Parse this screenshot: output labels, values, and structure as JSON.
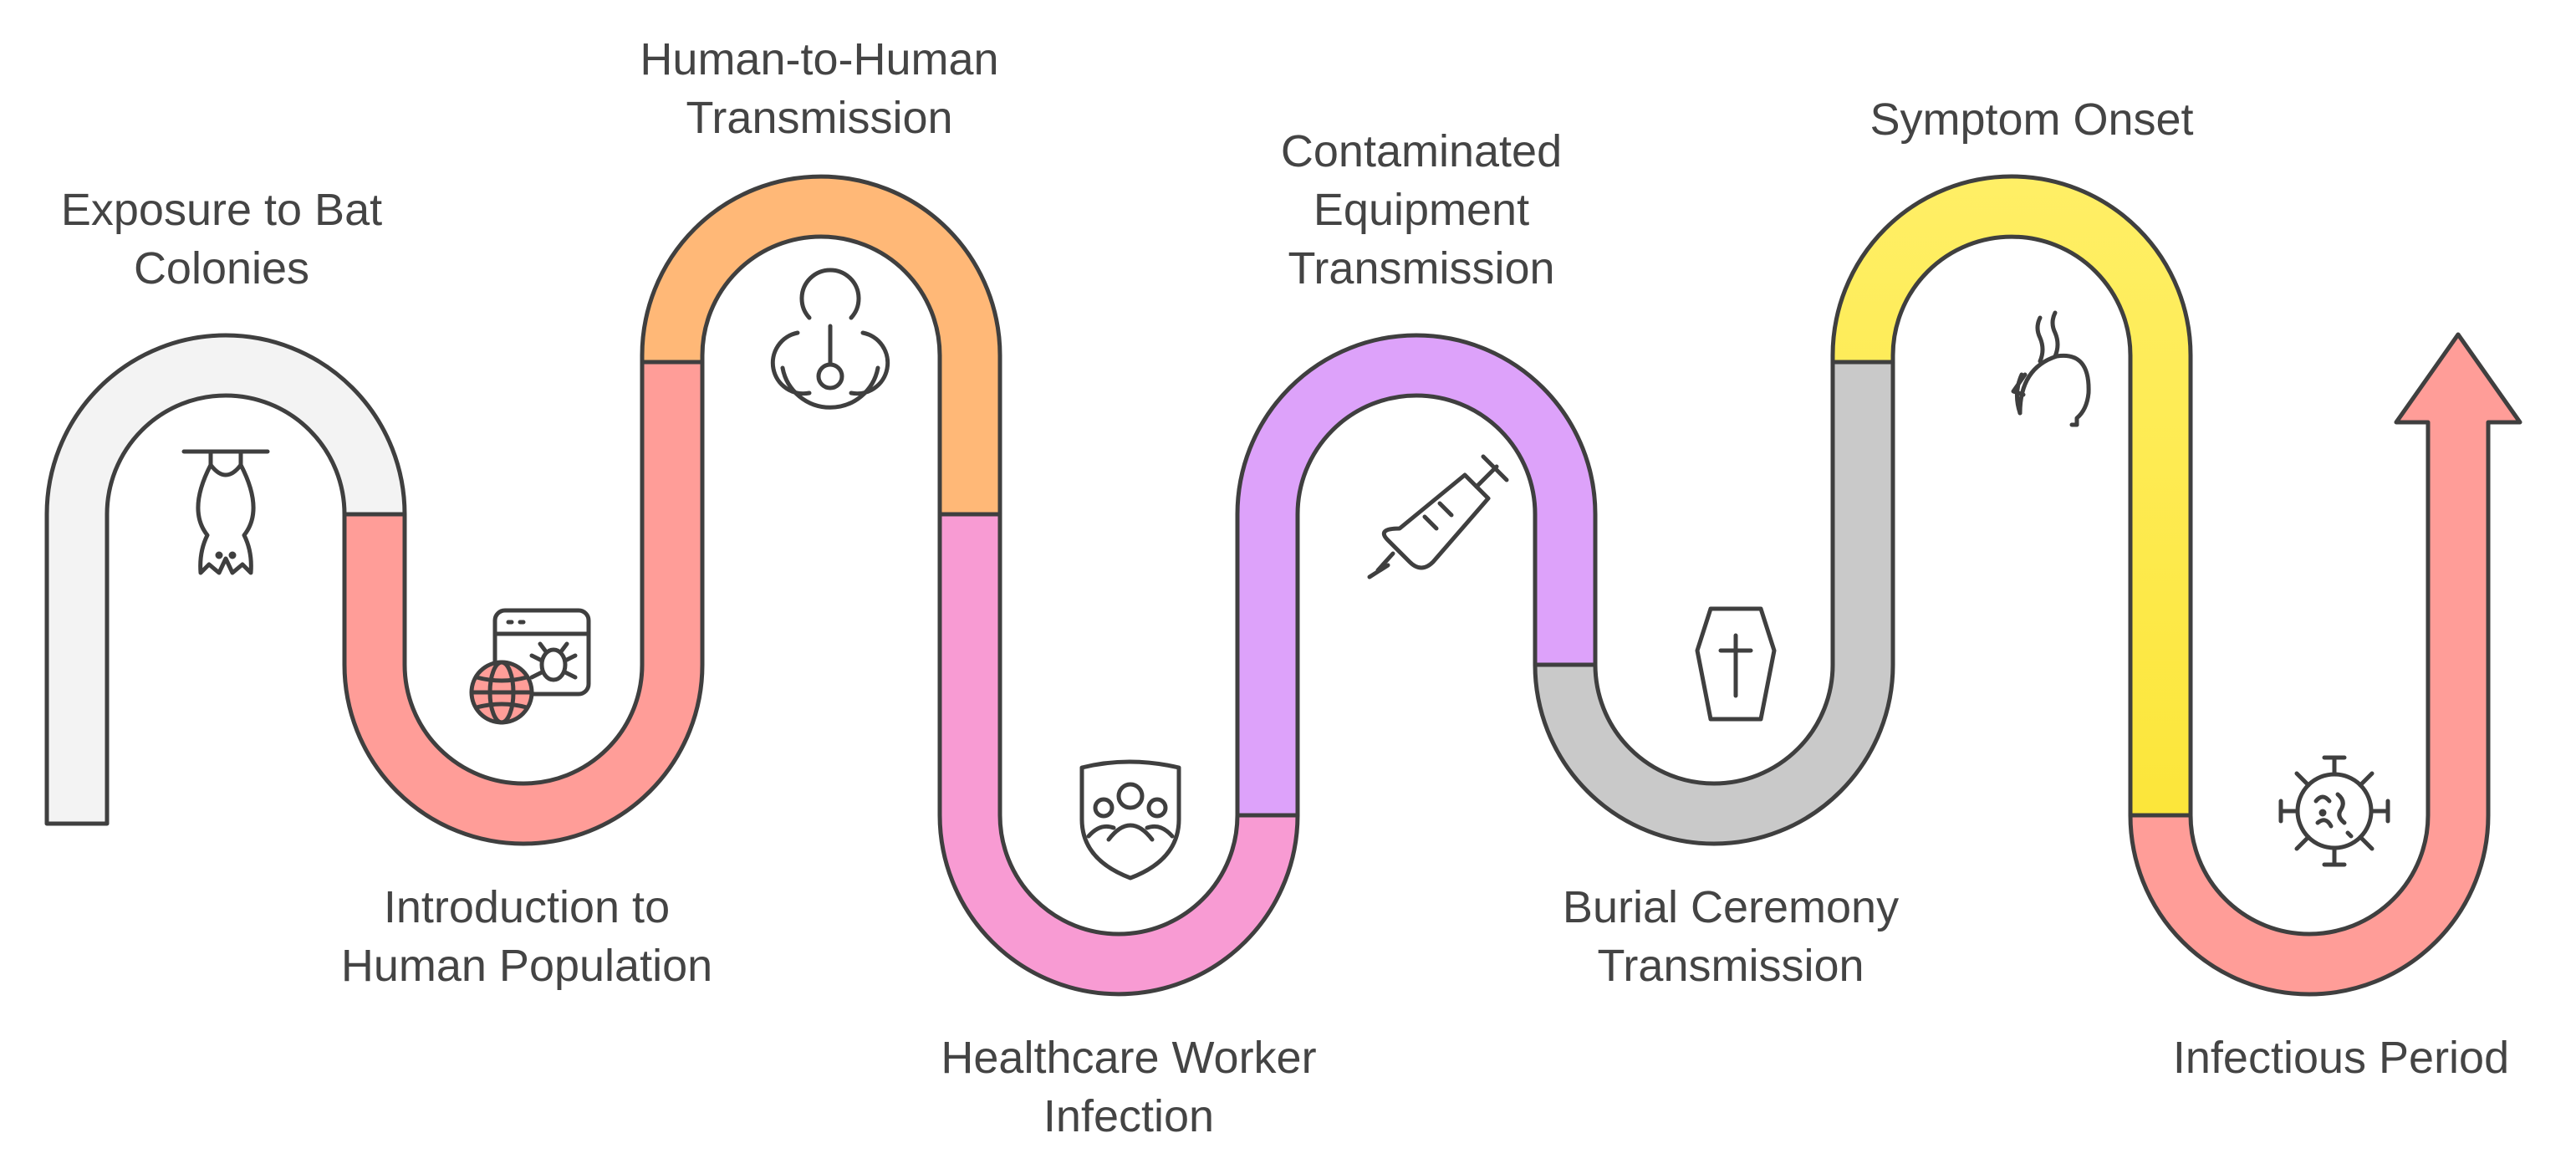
{
  "steps": [
    {
      "id": "exposure",
      "lines": [
        "Exposure to Bat",
        "Colonies"
      ],
      "icon": "bat-icon",
      "color": "#F3F3F3"
    },
    {
      "id": "introduction",
      "lines": [
        "Introduction to",
        "Human Population"
      ],
      "icon": "web-bug-icon",
      "color": "#FF9D98"
    },
    {
      "id": "human-to-human",
      "lines": [
        "Human-to-Human",
        "Transmission"
      ],
      "icon": "biohazard-icon",
      "color": "#FFB877"
    },
    {
      "id": "healthcare",
      "lines": [
        "Healthcare Worker",
        "Infection"
      ],
      "icon": "shield-people-icon",
      "color": "#F89BD3"
    },
    {
      "id": "equipment",
      "lines": [
        "Contaminated",
        "Equipment",
        "Transmission"
      ],
      "icon": "syringe-icon",
      "color": "#DDA2FA"
    },
    {
      "id": "burial",
      "lines": [
        "Burial Ceremony",
        "Transmission"
      ],
      "icon": "coffin-icon",
      "color": "#C9C9C9"
    },
    {
      "id": "symptom",
      "lines": [
        "Symptom Onset"
      ],
      "icon": "head-fever-icon",
      "color": "#FFEF66"
    },
    {
      "id": "infectious",
      "lines": [
        "Infectious Period"
      ],
      "icon": "virus-icon",
      "color": "#FF9D98"
    }
  ]
}
